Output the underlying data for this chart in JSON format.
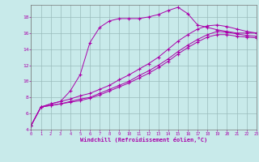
{
  "xlabel": "Windchill (Refroidissement éolien,°C)",
  "bg_color": "#c8eaea",
  "line_color": "#aa00aa",
  "grid_color": "#99bbbb",
  "xmin": 0,
  "xmax": 23,
  "ymin": 4,
  "ymax": 19.5,
  "yticks": [
    4,
    6,
    8,
    10,
    12,
    14,
    16,
    18
  ],
  "xticks": [
    0,
    1,
    2,
    3,
    4,
    5,
    6,
    7,
    8,
    9,
    10,
    11,
    12,
    13,
    14,
    15,
    16,
    17,
    18,
    19,
    20,
    21,
    22,
    23
  ],
  "curves": [
    {
      "x": [
        0,
        1,
        2,
        3,
        4,
        5,
        6,
        7,
        8,
        9,
        10,
        11,
        12,
        13,
        14,
        15,
        16,
        17,
        18,
        19,
        20,
        21,
        22,
        23
      ],
      "y": [
        4.5,
        6.8,
        7.2,
        7.5,
        8.8,
        10.8,
        14.8,
        16.7,
        17.5,
        17.8,
        17.8,
        17.8,
        18.0,
        18.3,
        18.8,
        19.2,
        18.4,
        17.0,
        16.7,
        16.4,
        16.2,
        16.0,
        16.0,
        16.0
      ]
    },
    {
      "x": [
        0,
        1,
        2,
        3,
        4,
        5,
        6,
        7,
        8,
        9,
        10,
        11,
        12,
        13,
        14,
        15,
        16,
        17,
        18,
        19,
        20,
        21,
        22,
        23
      ],
      "y": [
        4.5,
        6.8,
        7.2,
        7.5,
        7.8,
        8.2,
        8.5,
        9.0,
        9.5,
        10.2,
        10.8,
        11.5,
        12.2,
        13.0,
        14.0,
        15.0,
        15.8,
        16.5,
        16.9,
        17.0,
        16.8,
        16.5,
        16.2,
        16.0
      ]
    },
    {
      "x": [
        0,
        1,
        2,
        3,
        4,
        5,
        6,
        7,
        8,
        9,
        10,
        11,
        12,
        13,
        14,
        15,
        16,
        17,
        18,
        19,
        20,
        21,
        22,
        23
      ],
      "y": [
        4.5,
        6.8,
        7.0,
        7.2,
        7.5,
        7.8,
        8.0,
        8.5,
        9.0,
        9.5,
        10.0,
        10.7,
        11.3,
        12.0,
        12.8,
        13.7,
        14.5,
        15.2,
        15.8,
        16.2,
        16.1,
        15.9,
        15.7,
        15.6
      ]
    },
    {
      "x": [
        0,
        1,
        2,
        3,
        4,
        5,
        6,
        7,
        8,
        9,
        10,
        11,
        12,
        13,
        14,
        15,
        16,
        17,
        18,
        19,
        20,
        21,
        22,
        23
      ],
      "y": [
        4.5,
        6.8,
        7.0,
        7.2,
        7.4,
        7.6,
        7.9,
        8.3,
        8.8,
        9.3,
        9.8,
        10.4,
        11.0,
        11.7,
        12.5,
        13.4,
        14.2,
        14.9,
        15.5,
        15.8,
        15.8,
        15.6,
        15.5,
        15.4
      ]
    }
  ]
}
